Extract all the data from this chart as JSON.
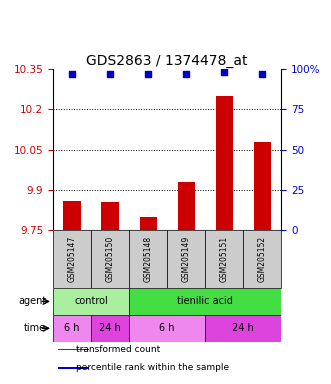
{
  "title": "GDS2863 / 1374478_at",
  "samples": [
    "GSM205147",
    "GSM205150",
    "GSM205148",
    "GSM205149",
    "GSM205151",
    "GSM205152"
  ],
  "bar_values": [
    9.86,
    9.855,
    9.8,
    9.93,
    10.25,
    10.08
  ],
  "percentile_values": [
    97,
    97,
    97,
    97,
    98,
    97
  ],
  "bar_color": "#cc0000",
  "percentile_color": "#0000cc",
  "ylim_left": [
    9.75,
    10.35
  ],
  "ylim_right": [
    0,
    100
  ],
  "yticks_left": [
    9.75,
    9.9,
    10.05,
    10.2,
    10.35
  ],
  "yticks_right": [
    0,
    25,
    50,
    75,
    100
  ],
  "hgrid_values": [
    9.9,
    10.05,
    10.2
  ],
  "agent_labels": [
    {
      "label": "control",
      "span": [
        0,
        2
      ],
      "color": "#aaeea0"
    },
    {
      "label": "tienilic acid",
      "span": [
        2,
        6
      ],
      "color": "#44dd44"
    }
  ],
  "time_labels": [
    {
      "label": "6 h",
      "span": [
        0,
        1
      ],
      "color": "#ee88ee"
    },
    {
      "label": "24 h",
      "span": [
        1,
        2
      ],
      "color": "#dd44dd"
    },
    {
      "label": "6 h",
      "span": [
        2,
        4
      ],
      "color": "#ee88ee"
    },
    {
      "label": "24 h",
      "span": [
        4,
        6
      ],
      "color": "#dd44dd"
    }
  ],
  "legend_items": [
    {
      "label": "transformed count",
      "color": "#cc0000"
    },
    {
      "label": "percentile rank within the sample",
      "color": "#0000cc"
    }
  ],
  "bar_width": 0.45,
  "background_color": "#ffffff",
  "title_fontsize": 10,
  "tick_fontsize": 7.5,
  "sample_fontsize": 5.5,
  "label_fontsize": 7
}
